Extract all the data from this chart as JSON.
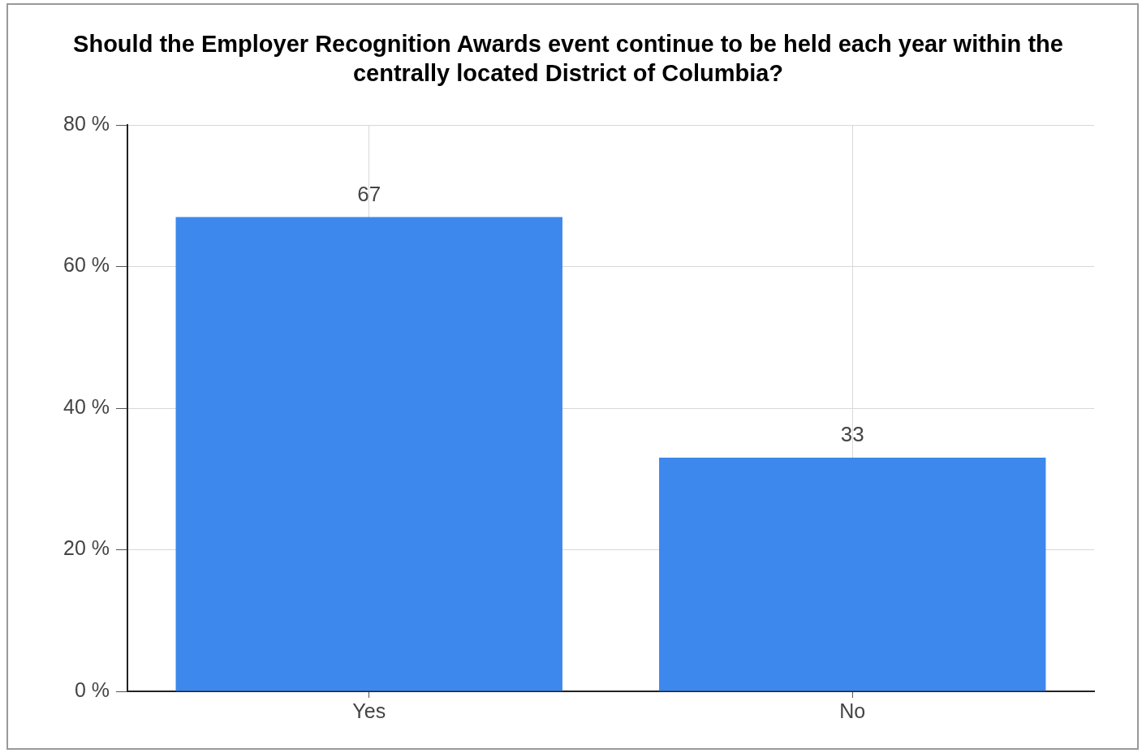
{
  "chart_data": {
    "type": "bar",
    "title": "Should the Employer Recognition Awards event continue to be held each year within the centrally located District of Columbia?",
    "categories": [
      "Yes",
      "No"
    ],
    "values": [
      67,
      33
    ],
    "color": "#3d88ec",
    "ylim": [
      0,
      80
    ],
    "yticks": [
      {
        "value": 0,
        "label": "0 %"
      },
      {
        "value": 20,
        "label": "20 %"
      },
      {
        "value": 40,
        "label": "40 %"
      },
      {
        "value": 60,
        "label": "60 %"
      },
      {
        "value": 80,
        "label": "80 %"
      }
    ],
    "grid": true,
    "data_labels": true,
    "legend": false
  }
}
